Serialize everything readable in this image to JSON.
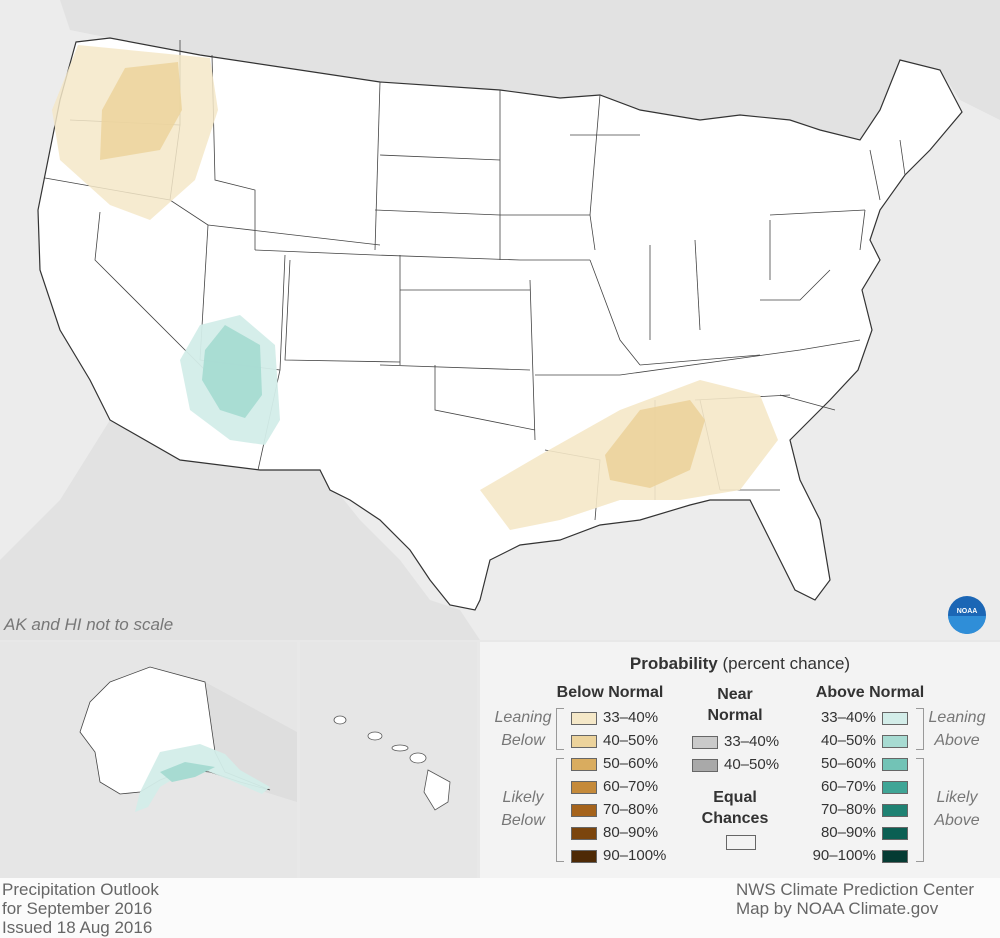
{
  "map": {
    "scale_note": "AK and HI not to scale"
  },
  "legend": {
    "title_bold": "Probability",
    "title_rest": "(percent chance)",
    "below": {
      "heading": "Below Normal",
      "group_leaning": [
        "Leaning",
        "Below"
      ],
      "group_likely": [
        "Likely",
        "Below"
      ],
      "items": [
        {
          "label": "33–40%",
          "color": "#f5e8c8"
        },
        {
          "label": "40–50%",
          "color": "#ecd39c"
        },
        {
          "label": "50–60%",
          "color": "#d9ac5f"
        },
        {
          "label": "60–70%",
          "color": "#c58a3a"
        },
        {
          "label": "70–80%",
          "color": "#a5631b"
        },
        {
          "label": "80–90%",
          "color": "#7b450d"
        },
        {
          "label": "90–100%",
          "color": "#4e2a06"
        }
      ]
    },
    "near": {
      "heading": [
        "Near",
        "Normal"
      ],
      "items": [
        {
          "label": "33–40%",
          "color": "#cacaca"
        },
        {
          "label": "40–50%",
          "color": "#a9a9a9"
        }
      ],
      "equal_heading": [
        "Equal",
        "Chances"
      ],
      "equal_color": "#ffffff"
    },
    "above": {
      "heading": "Above Normal",
      "group_leaning": [
        "Leaning",
        "Above"
      ],
      "group_likely": [
        "Likely",
        "Above"
      ],
      "items": [
        {
          "label": "33–40%",
          "color": "#d3ede9"
        },
        {
          "label": "40–50%",
          "color": "#a7dbd2"
        },
        {
          "label": "50–60%",
          "color": "#72c3b6"
        },
        {
          "label": "60–70%",
          "color": "#3fa596"
        },
        {
          "label": "70–80%",
          "color": "#1f8273"
        },
        {
          "label": "80–90%",
          "color": "#0b5f53"
        },
        {
          "label": "90–100%",
          "color": "#053b33"
        }
      ]
    }
  },
  "footer": {
    "left_line1": "Precipitation Outlook",
    "left_line2": "for September 2016",
    "left_line3": "Issued 18 Aug 2016",
    "right_line1": "NWS Climate Prediction Center",
    "right_line2": "Map by NOAA Climate.gov"
  },
  "logo": {
    "text": "NOAA"
  }
}
